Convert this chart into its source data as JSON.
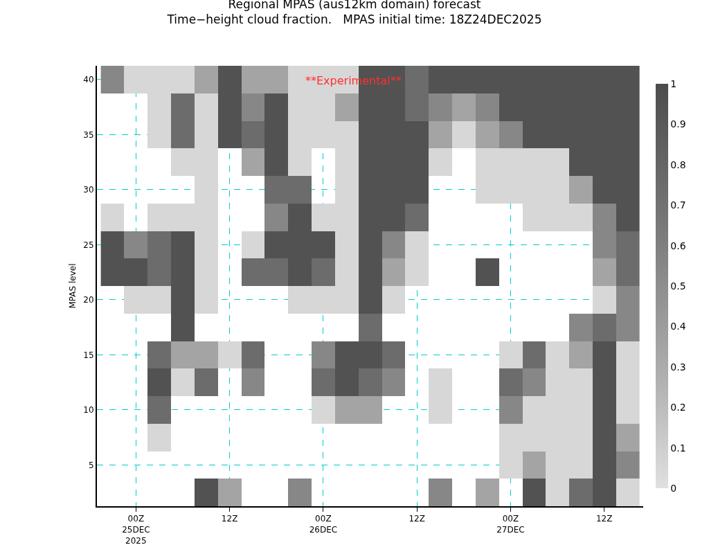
{
  "chart_data": {
    "type": "heatmap",
    "title": "Regional MPAS (aus12km domain) forecast\nTime−height cloud fraction.   MPAS initial time: 18Z24DEC2025",
    "ylabel": "MPAS level",
    "annotations": [
      "**Experimental**"
    ],
    "x": [
      "2025-12-24T21:00",
      "2025-12-25T00:00",
      "2025-12-25T03:00",
      "2025-12-25T06:00",
      "2025-12-25T09:00",
      "2025-12-25T12:00",
      "2025-12-25T15:00",
      "2025-12-25T18:00",
      "2025-12-25T21:00",
      "2025-12-26T00:00",
      "2025-12-26T03:00",
      "2025-12-26T06:00",
      "2025-12-26T09:00",
      "2025-12-26T12:00",
      "2025-12-26T15:00",
      "2025-12-26T18:00",
      "2025-12-26T21:00",
      "2025-12-27T00:00",
      "2025-12-27T03:00",
      "2025-12-27T06:00",
      "2025-12-27T09:00",
      "2025-12-27T12:00",
      "2025-12-27T15:00"
    ],
    "y_categories": [
      "40",
      null,
      "35",
      null,
      "30",
      null,
      "25",
      null,
      "20",
      null,
      "15",
      null,
      "10",
      null,
      "5",
      null
    ],
    "cells": [
      [
        0.55,
        0.05,
        0.05,
        0.05,
        0.35,
        0.95,
        0.35,
        0.35,
        0.05,
        0.05,
        0.05,
        0.95,
        0.95,
        0.75,
        0.95,
        0.95,
        0.95,
        0.95,
        0.95,
        0.95,
        0.95,
        0.95,
        0.95
      ],
      [
        null,
        null,
        0.05,
        0.75,
        0.05,
        0.95,
        0.55,
        0.95,
        0.05,
        0.05,
        0.35,
        0.95,
        0.95,
        0.75,
        0.55,
        0.35,
        0.55,
        0.95,
        0.95,
        0.95,
        0.95,
        0.95,
        0.95
      ],
      [
        null,
        null,
        0.05,
        0.75,
        0.05,
        0.95,
        0.75,
        0.95,
        0.05,
        0.05,
        0.05,
        0.95,
        0.95,
        0.95,
        0.35,
        0.05,
        0.35,
        0.55,
        0.95,
        0.95,
        0.95,
        0.95,
        0.95
      ],
      [
        null,
        null,
        null,
        0.05,
        0.05,
        null,
        0.35,
        0.95,
        0.05,
        null,
        0.05,
        0.95,
        0.95,
        0.95,
        0.05,
        null,
        0.05,
        0.05,
        0.05,
        0.05,
        0.95,
        0.95,
        0.95
      ],
      [
        null,
        null,
        null,
        null,
        0.05,
        null,
        null,
        0.75,
        0.75,
        null,
        0.05,
        0.95,
        0.95,
        0.95,
        null,
        null,
        0.05,
        0.05,
        0.05,
        0.05,
        0.35,
        0.95,
        0.95
      ],
      [
        0.05,
        null,
        0.05,
        0.05,
        0.05,
        null,
        null,
        0.55,
        0.95,
        0.05,
        0.05,
        0.95,
        0.95,
        0.75,
        null,
        null,
        null,
        null,
        0.05,
        0.05,
        0.05,
        0.55,
        0.95
      ],
      [
        0.95,
        0.55,
        0.75,
        0.95,
        0.05,
        null,
        0.05,
        0.95,
        0.95,
        0.95,
        0.05,
        0.95,
        0.55,
        0.05,
        null,
        null,
        null,
        null,
        null,
        null,
        null,
        0.55,
        0.75
      ],
      [
        0.95,
        0.95,
        0.75,
        0.95,
        0.05,
        null,
        0.75,
        0.75,
        0.95,
        0.75,
        0.05,
        0.95,
        0.35,
        0.05,
        null,
        null,
        0.95,
        null,
        null,
        null,
        null,
        0.35,
        0.75
      ],
      [
        null,
        0.05,
        0.05,
        0.95,
        0.05,
        null,
        null,
        null,
        0.05,
        0.05,
        0.05,
        0.95,
        0.05,
        null,
        null,
        null,
        null,
        null,
        null,
        null,
        null,
        0.05,
        0.55
      ],
      [
        null,
        null,
        null,
        0.95,
        null,
        null,
        null,
        null,
        null,
        null,
        null,
        0.75,
        null,
        null,
        null,
        null,
        null,
        null,
        null,
        null,
        0.55,
        0.75,
        0.55
      ],
      [
        null,
        null,
        0.75,
        0.35,
        0.35,
        0.05,
        0.75,
        null,
        null,
        0.55,
        0.95,
        0.95,
        0.75,
        null,
        null,
        null,
        null,
        0.05,
        0.75,
        0.05,
        0.35,
        0.95,
        0.05
      ],
      [
        null,
        null,
        0.95,
        0.05,
        0.75,
        null,
        0.55,
        null,
        null,
        0.75,
        0.95,
        0.75,
        0.55,
        null,
        0.05,
        null,
        null,
        0.75,
        0.55,
        0.05,
        0.05,
        0.95,
        0.05
      ],
      [
        null,
        null,
        0.75,
        null,
        null,
        null,
        null,
        null,
        null,
        0.05,
        0.35,
        0.35,
        null,
        null,
        0.05,
        null,
        null,
        0.55,
        0.05,
        0.05,
        0.05,
        0.95,
        0.05
      ],
      [
        null,
        null,
        0.05,
        null,
        null,
        null,
        null,
        null,
        null,
        null,
        null,
        null,
        null,
        null,
        null,
        null,
        null,
        0.05,
        0.05,
        0.05,
        0.05,
        0.95,
        0.35
      ],
      [
        null,
        null,
        null,
        null,
        null,
        null,
        null,
        null,
        null,
        null,
        null,
        null,
        null,
        null,
        null,
        null,
        null,
        0.05,
        0.35,
        0.05,
        0.05,
        0.95,
        0.55
      ],
      [
        null,
        null,
        null,
        null,
        0.95,
        0.35,
        null,
        null,
        0.55,
        null,
        null,
        null,
        null,
        null,
        0.55,
        null,
        0.35,
        null,
        0.95,
        0.05,
        0.75,
        0.95,
        0.05
      ]
    ],
    "xlim": [
      "2025-12-24T19:00",
      "2025-12-27T17:00"
    ],
    "xticks": [
      {
        "value": "2025-12-25T00:00",
        "label": "00Z\n25DEC\n2025"
      },
      {
        "value": "2025-12-25T12:00",
        "label": "12Z"
      },
      {
        "value": "2025-12-26T00:00",
        "label": "00Z\n26DEC"
      },
      {
        "value": "2025-12-26T12:00",
        "label": "12Z"
      },
      {
        "value": "2025-12-27T00:00",
        "label": "00Z\n27DEC"
      },
      {
        "value": "2025-12-27T12:00",
        "label": "12Z"
      }
    ],
    "clim": [
      0,
      1
    ],
    "cticks": [
      0,
      0.1,
      0.2,
      0.3,
      0.4,
      0.5,
      0.6,
      0.7,
      0.8,
      0.9,
      1
    ],
    "grid": true
  }
}
